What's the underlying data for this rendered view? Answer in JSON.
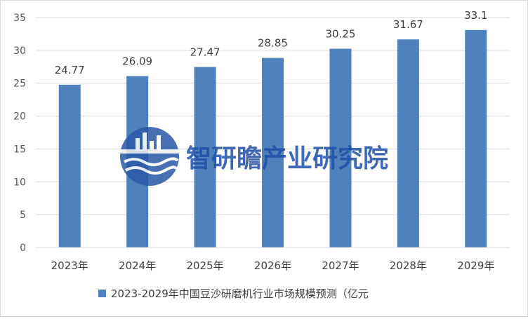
{
  "chart_data": {
    "type": "bar",
    "categories": [
      "2023年",
      "2024年",
      "2025年",
      "2026年",
      "2027年",
      "2028年",
      "2029年"
    ],
    "series": [
      {
        "name": "2023-2029年中国豆沙研磨机行业市场规模预测（亿元",
        "values": [
          24.77,
          26.09,
          27.47,
          28.85,
          30.25,
          31.67,
          33.1
        ]
      }
    ],
    "data_labels": [
      "24.77",
      "26.09",
      "27.47",
      "28.85",
      "30.25",
      "31.67",
      "33.1"
    ],
    "y_ticks": [
      "0",
      "5",
      "10",
      "15",
      "20",
      "25",
      "30",
      "35"
    ],
    "ylim": [
      0,
      35
    ],
    "grid": true,
    "legend_position": "bottom",
    "title": "",
    "xlabel": "",
    "ylabel": "",
    "bar_color": "#4f81bd"
  },
  "watermark": {
    "text": "智研瞻产业研究院",
    "color": "#1e4fa8"
  }
}
